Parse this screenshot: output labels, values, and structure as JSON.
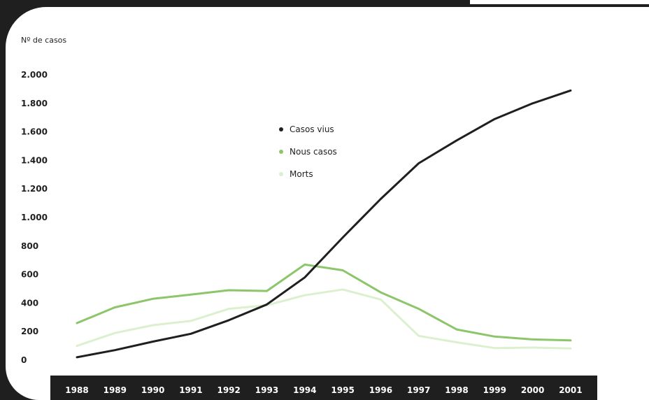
{
  "chart_data": {
    "type": "line",
    "ylabel": "Nº de casos",
    "x": [
      1988,
      1989,
      1990,
      1991,
      1992,
      1993,
      1994,
      1995,
      1996,
      1997,
      1998,
      1999,
      2000,
      2001
    ],
    "ylim": [
      0,
      2000
    ],
    "yticks": [
      0,
      200,
      400,
      600,
      800,
      1000,
      1200,
      1400,
      1600,
      1800,
      2000
    ],
    "ytick_labels": [
      "0",
      "200",
      "400",
      "600",
      "800",
      "1.000",
      "1.200",
      "1.400",
      "1.600",
      "1.800",
      "2.000"
    ],
    "grid": false,
    "legend_position": "upper-middle",
    "series": [
      {
        "name": "Casos vius",
        "color": "#1f1f1f",
        "values": [
          20,
          70,
          130,
          185,
          280,
          390,
          580,
          860,
          1130,
          1380,
          1540,
          1690,
          1800,
          1890
        ]
      },
      {
        "name": "Nous casos",
        "color": "#8cc56a",
        "values": [
          260,
          370,
          430,
          460,
          490,
          485,
          670,
          630,
          475,
          360,
          215,
          165,
          145,
          138
        ]
      },
      {
        "name": "Morts",
        "color": "#dcefcf",
        "values": [
          100,
          190,
          245,
          275,
          360,
          385,
          455,
          495,
          425,
          170,
          125,
          85,
          88,
          82
        ]
      }
    ]
  }
}
